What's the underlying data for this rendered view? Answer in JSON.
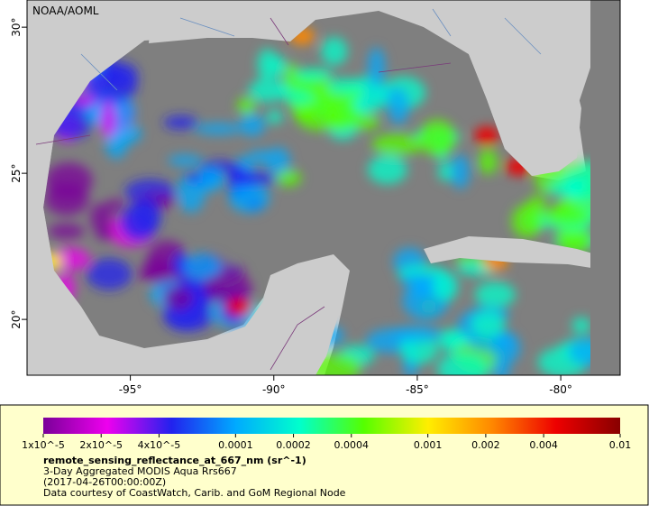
{
  "map": {
    "credit": "NOAA/AOML",
    "xlim": [
      -98.6,
      -77.93
    ],
    "ylim": [
      18.09,
      30.93
    ],
    "xticks": [
      {
        "value": -95,
        "label": "-95°"
      },
      {
        "value": -90,
        "label": "-90°"
      },
      {
        "value": -85,
        "label": "-85°"
      },
      {
        "value": -80,
        "label": "-80°"
      }
    ],
    "yticks": [
      {
        "value": 20,
        "label": "20°"
      },
      {
        "value": 25,
        "label": "25°"
      },
      {
        "value": 30,
        "label": "30°"
      }
    ]
  },
  "colorbar": {
    "log": true,
    "lim": [
      1e-05,
      0.01
    ],
    "colors": [
      "#7a0099",
      "#ee00ee",
      "#2222ee",
      "#00aaff",
      "#00ffcc",
      "#55ff00",
      "#ffee00",
      "#ff8800",
      "#ee0000",
      "#880000"
    ],
    "ticks": [
      {
        "value": 1e-05,
        "label": "1x10^-5"
      },
      {
        "value": 2e-05,
        "label": "2x10^-5"
      },
      {
        "value": 4e-05,
        "label": "4x10^-5"
      },
      0.0001,
      0.0002,
      0.0004,
      0.001,
      0.002,
      0.004,
      0.01
    ],
    "title": "remote_sensing_reflectance_at_667_nm (sr^-1)",
    "lines": [
      "3-Day Aggregated MODIS Aqua Rrs667",
      "(2017-04-26T00:00:00Z)",
      "Data courtesy of CoastWatch, Carib. and GoM Regional Node"
    ]
  }
}
